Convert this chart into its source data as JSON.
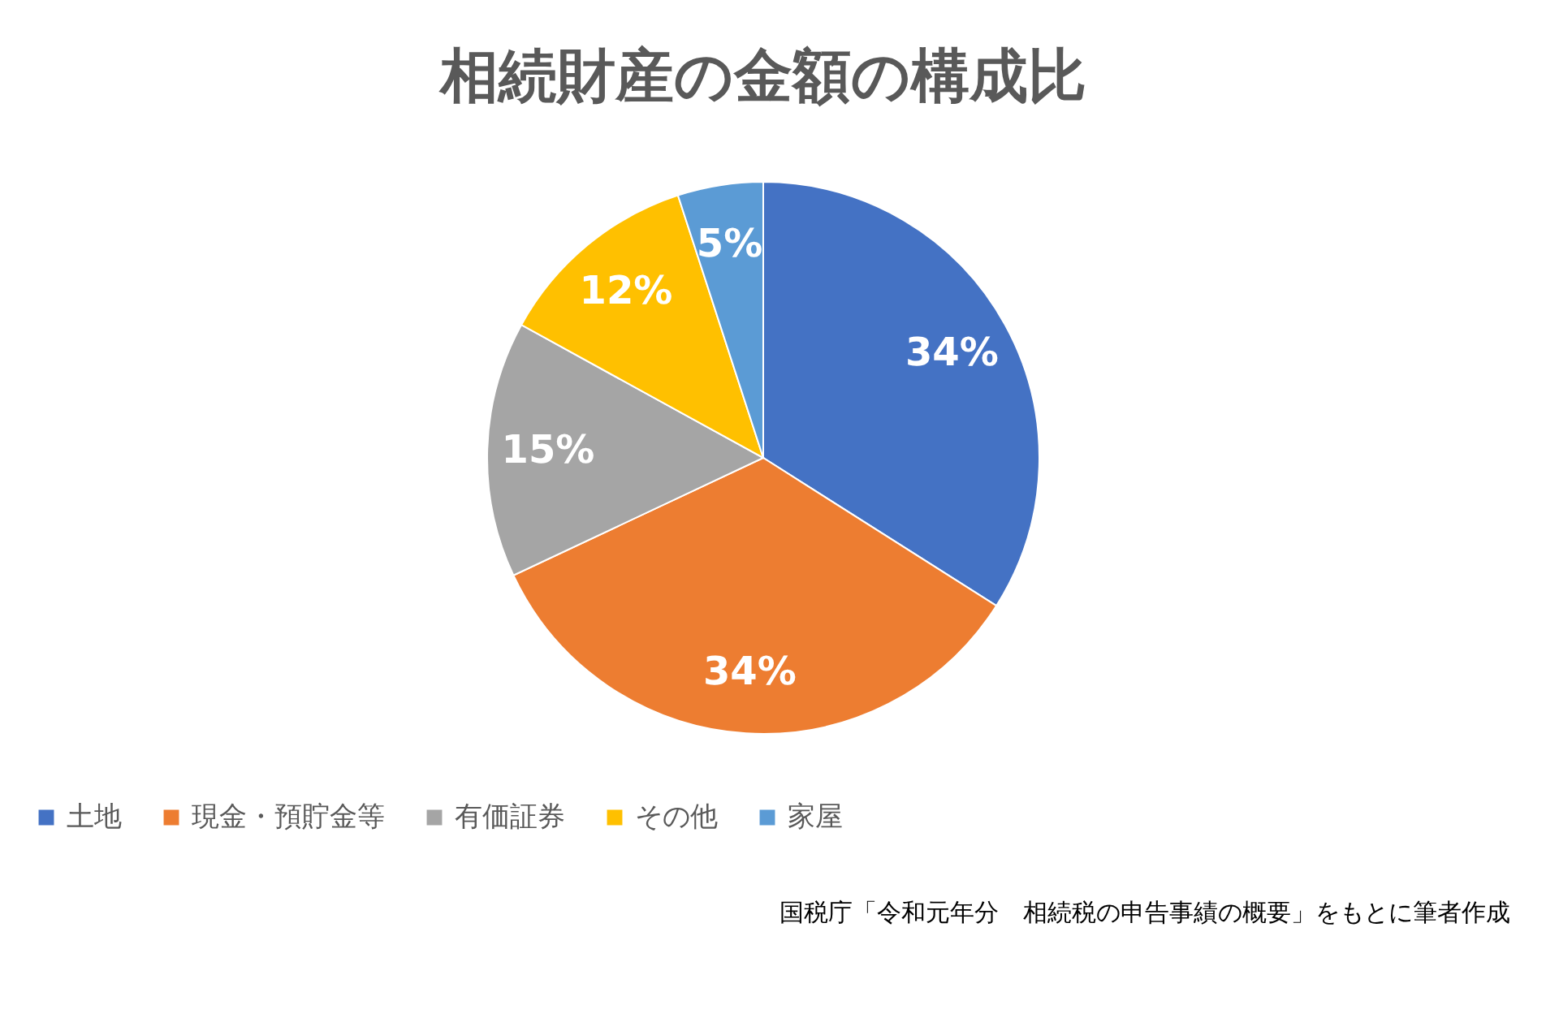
{
  "chart_data": {
    "type": "pie",
    "title": "相続財産の金額の構成比",
    "categories": [
      "土地",
      "現金・預貯金等",
      "有価証券",
      "その他",
      "家屋"
    ],
    "values": [
      34,
      34,
      15,
      12,
      5
    ],
    "colors": [
      "#4472c4",
      "#ed7d31",
      "#a5a5a5",
      "#ffc000",
      "#5b9bd5"
    ],
    "value_labels": [
      "34%",
      "34%",
      "15%",
      "12%",
      "5%"
    ],
    "legend": "bottom",
    "annotations": [
      "国税庁「令和元年分　相続税の申告事績の概要」をもとに筆者作成"
    ]
  }
}
